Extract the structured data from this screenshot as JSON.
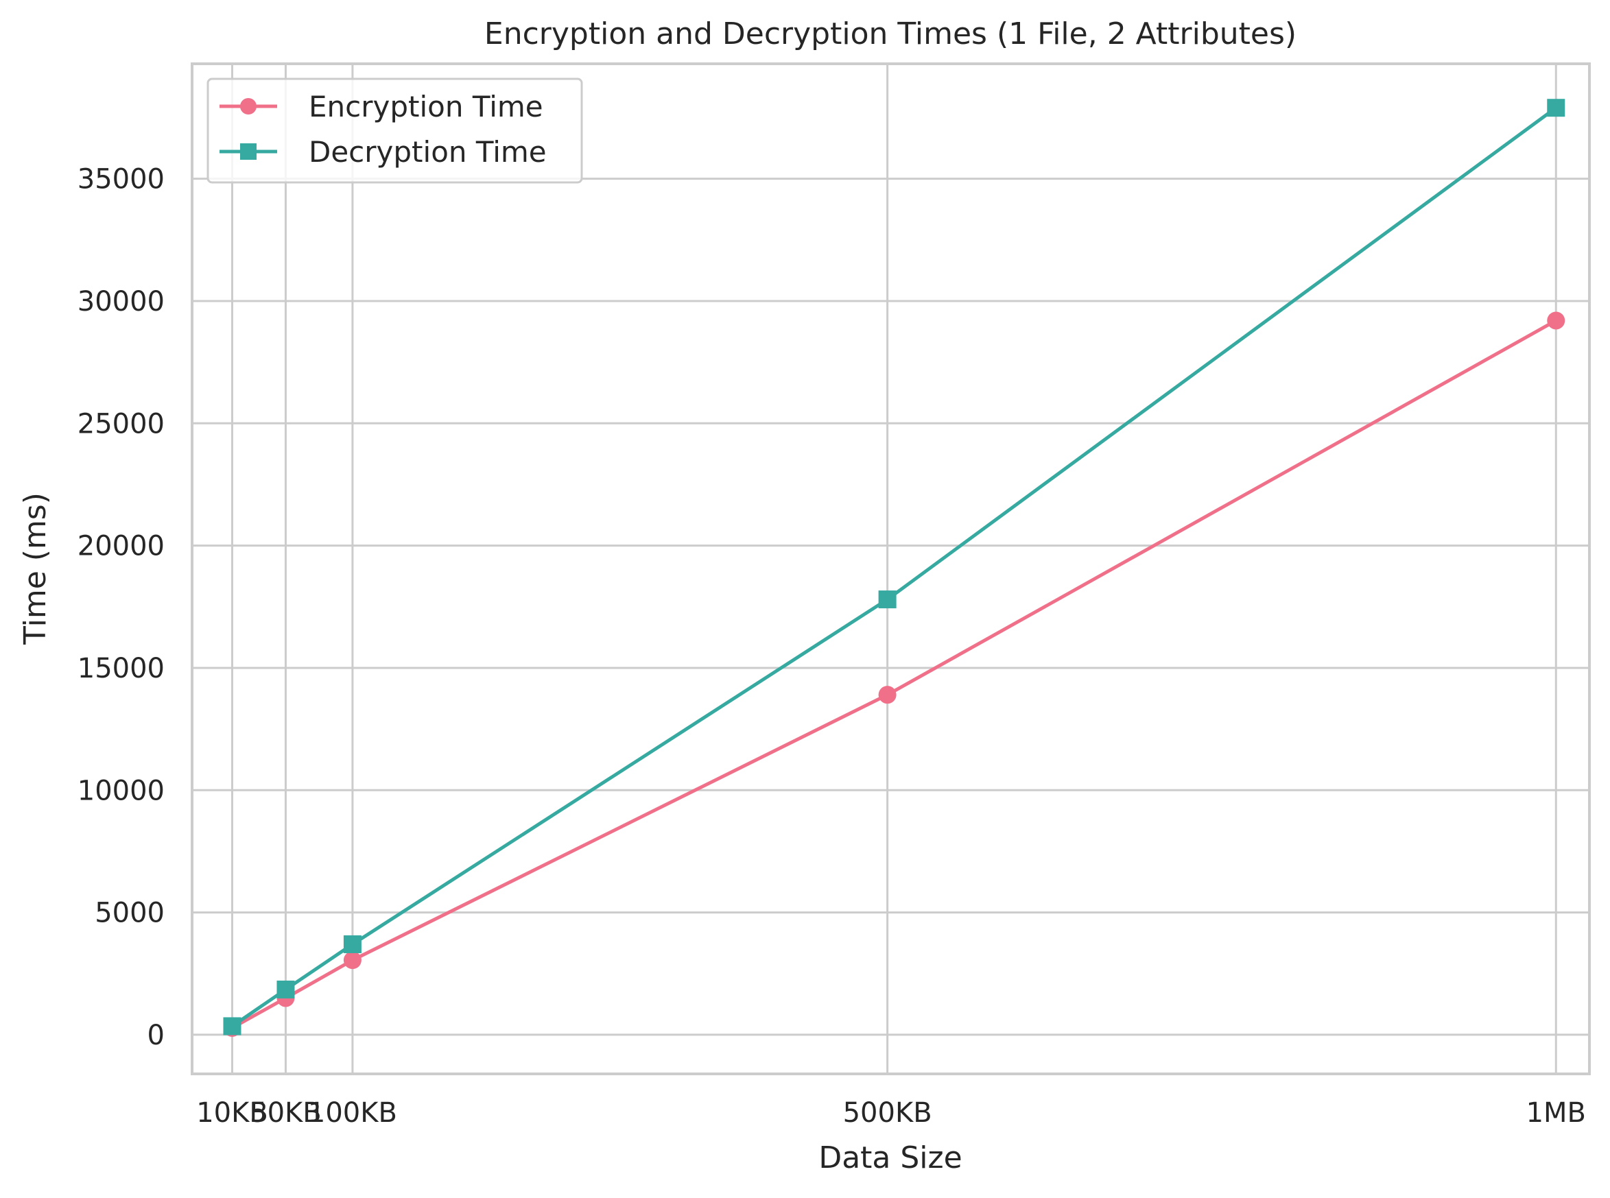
{
  "chart_data": {
    "type": "line",
    "title": "Encryption and Decryption Times (1 File, 2 Attributes)",
    "xlabel": "Data Size",
    "ylabel": "Time (ms)",
    "x_positions_kb": [
      10,
      50,
      100,
      500,
      1000
    ],
    "categories": [
      "10KB",
      "50KB",
      "100KB",
      "500KB",
      "1MB"
    ],
    "xlim": [
      -20,
      1025
    ],
    "ylim": [
      -1600,
      39700
    ],
    "yticks": [
      0,
      5000,
      10000,
      15000,
      20000,
      25000,
      30000,
      35000
    ],
    "grid": true,
    "legend_position": "upper left",
    "series": [
      {
        "name": "Encryption Time",
        "marker": "circle",
        "color": "#f0708a",
        "values": [
          280,
          1500,
          3050,
          13900,
          29200
        ]
      },
      {
        "name": "Decryption Time",
        "marker": "square",
        "color": "#36aaa0",
        "values": [
          350,
          1850,
          3700,
          17800,
          37900
        ]
      }
    ]
  }
}
